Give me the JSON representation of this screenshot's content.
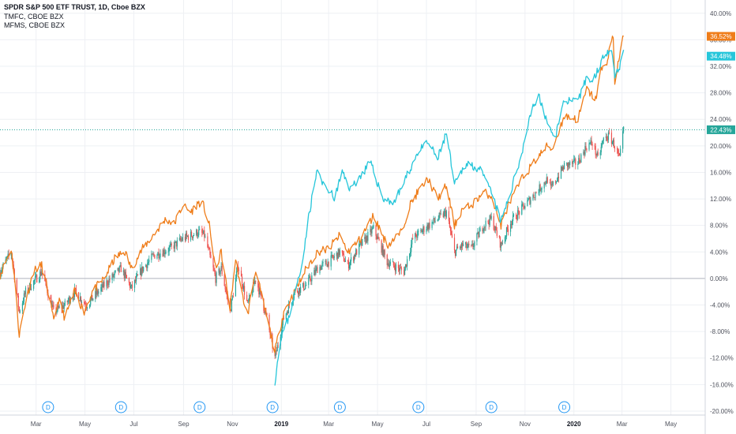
{
  "legend": {
    "main": "SPDR S&P 500 ETF TRUST, 1D, Cboe BZX",
    "compare1": "TMFC, CBOE BZX",
    "compare2": "MFMS, CBOE BZX"
  },
  "colors": {
    "tmfc": "#ef7d1a",
    "mfms": "#26c6da",
    "up": "#26a69a",
    "down": "#ef5350",
    "dividend": "#2196f3",
    "grid": "#eef0f4",
    "zero": "#b2b5be",
    "price_line": "#26a69a"
  },
  "chart_data": {
    "type": "line",
    "title": "SPDR S&P 500 ETF TRUST, 1D, Cboe BZX",
    "xlabel": "",
    "ylabel": "",
    "ylim": [
      -20.6,
      42
    ],
    "y_unit": "%",
    "grid": true,
    "x_axis_labels": [
      "Mar",
      "May",
      "Jul",
      "Sep",
      "Nov",
      "2019",
      "Mar",
      "May",
      "Jul",
      "Sep",
      "Nov",
      "2020",
      "Mar",
      "May"
    ],
    "y_axis_labels": [
      "40.00%",
      "36.00%",
      "32.00%",
      "28.00%",
      "24.00%",
      "20.00%",
      "16.00%",
      "12.00%",
      "8.00%",
      "4.00%",
      "0.00%",
      "-4.00%",
      "-8.00%",
      "-12.00%",
      "-16.00%",
      "-20.00%"
    ],
    "y_ticks": [
      40,
      36,
      32,
      28,
      24,
      20,
      16,
      12,
      8,
      4,
      0,
      -4,
      -8,
      -12,
      -16,
      -20
    ],
    "dividend_markers": {
      "label": "D",
      "dates": [
        "2018-03-16",
        "2018-06-15",
        "2018-09-21",
        "2018-12-21",
        "2019-03-15",
        "2019-06-21",
        "2019-09-20",
        "2019-12-20"
      ]
    },
    "last_values": [
      {
        "series": "TMFC",
        "label": "36.52%",
        "value": 36.52
      },
      {
        "series": "MFMS",
        "label": "34.48%",
        "value": 34.48
      },
      {
        "series": "SPY",
        "label": "22.43%",
        "value": 22.43
      }
    ],
    "series": [
      {
        "name": "TMFC",
        "type": "line",
        "points": [
          [
            "2018-01-15",
            0.5
          ],
          [
            "2018-01-29",
            4.5
          ],
          [
            "2018-02-02",
            0.2
          ],
          [
            "2018-02-08",
            -8.5
          ],
          [
            "2018-02-16",
            -3.5
          ],
          [
            "2018-02-26",
            1.2
          ],
          [
            "2018-03-08",
            2.0
          ],
          [
            "2018-03-16",
            -2.0
          ],
          [
            "2018-03-23",
            -6.5
          ],
          [
            "2018-03-29",
            -3.2
          ],
          [
            "2018-04-06",
            -6.0
          ],
          [
            "2018-04-18",
            -2.0
          ],
          [
            "2018-04-30",
            -5.0
          ],
          [
            "2018-05-10",
            -2.0
          ],
          [
            "2018-05-25",
            0.0
          ],
          [
            "2018-06-08",
            3.2
          ],
          [
            "2018-06-20",
            4.0
          ],
          [
            "2018-06-28",
            1.5
          ],
          [
            "2018-07-12",
            4.5
          ],
          [
            "2018-07-25",
            6.5
          ],
          [
            "2018-08-10",
            9.0
          ],
          [
            "2018-08-20",
            8.2
          ],
          [
            "2018-08-31",
            11.0
          ],
          [
            "2018-09-10",
            10.0
          ],
          [
            "2018-09-20",
            11.5
          ],
          [
            "2018-09-26",
            11.0
          ],
          [
            "2018-10-03",
            8.0
          ],
          [
            "2018-10-11",
            1.5
          ],
          [
            "2018-10-18",
            4.0
          ],
          [
            "2018-10-29",
            -4.5
          ],
          [
            "2018-11-05",
            3.0
          ],
          [
            "2018-11-12",
            -2.0
          ],
          [
            "2018-11-20",
            -5.5
          ],
          [
            "2018-11-30",
            1.5
          ],
          [
            "2018-12-06",
            -2.0
          ],
          [
            "2018-12-14",
            -6.0
          ],
          [
            "2018-12-24",
            -11.0
          ],
          [
            "2019-01-04",
            -5.0
          ],
          [
            "2019-01-18",
            -2.0
          ],
          [
            "2019-02-01",
            1.5
          ],
          [
            "2019-02-15",
            4.0
          ],
          [
            "2019-03-01",
            4.5
          ],
          [
            "2019-03-15",
            6.5
          ],
          [
            "2019-03-25",
            4.0
          ],
          [
            "2019-04-10",
            6.0
          ],
          [
            "2019-04-26",
            9.5
          ],
          [
            "2019-05-13",
            5.0
          ],
          [
            "2019-05-31",
            7.0
          ],
          [
            "2019-06-10",
            11.0
          ],
          [
            "2019-06-20",
            13.0
          ],
          [
            "2019-07-03",
            15.0
          ],
          [
            "2019-07-15",
            12.0
          ],
          [
            "2019-07-26",
            14.0
          ],
          [
            "2019-08-05",
            8.0
          ],
          [
            "2019-08-15",
            10.5
          ],
          [
            "2019-08-26",
            11.0
          ],
          [
            "2019-09-10",
            13.0
          ],
          [
            "2019-09-20",
            12.5
          ],
          [
            "2019-10-02",
            8.0
          ],
          [
            "2019-10-11",
            11.0
          ],
          [
            "2019-10-28",
            15.0
          ],
          [
            "2019-11-15",
            18.0
          ],
          [
            "2019-11-29",
            20.0
          ],
          [
            "2019-12-05",
            19.5
          ],
          [
            "2019-12-20",
            24.5
          ],
          [
            "2020-01-06",
            24.0
          ],
          [
            "2020-01-17",
            28.5
          ],
          [
            "2020-01-28",
            27.0
          ],
          [
            "2020-02-04",
            31.5
          ],
          [
            "2020-02-10",
            32.0
          ],
          [
            "2020-02-14",
            34.5
          ],
          [
            "2020-02-19",
            36.5
          ],
          [
            "2020-02-21",
            29.5
          ],
          [
            "2020-02-25",
            32.5
          ],
          [
            "2020-03-03",
            36.52
          ]
        ]
      },
      {
        "name": "MFMS",
        "type": "line",
        "points": [
          [
            "2018-12-24",
            -15.5
          ],
          [
            "2018-12-31",
            -9.0
          ],
          [
            "2019-01-10",
            -6.0
          ],
          [
            "2019-01-18",
            -2.0
          ],
          [
            "2019-01-25",
            1.0
          ],
          [
            "2019-02-05",
            10.0
          ],
          [
            "2019-02-15",
            16.5
          ],
          [
            "2019-02-22",
            14.0
          ],
          [
            "2019-03-01",
            13.5
          ],
          [
            "2019-03-08",
            12.0
          ],
          [
            "2019-03-18",
            16.0
          ],
          [
            "2019-03-28",
            13.5
          ],
          [
            "2019-04-10",
            15.5
          ],
          [
            "2019-04-22",
            17.5
          ],
          [
            "2019-05-08",
            12.0
          ],
          [
            "2019-05-22",
            11.5
          ],
          [
            "2019-06-05",
            15.0
          ],
          [
            "2019-06-20",
            19.0
          ],
          [
            "2019-07-03",
            20.5
          ],
          [
            "2019-07-15",
            18.0
          ],
          [
            "2019-07-26",
            22.0
          ],
          [
            "2019-08-05",
            14.0
          ],
          [
            "2019-08-20",
            17.5
          ],
          [
            "2019-09-05",
            16.5
          ],
          [
            "2019-09-20",
            13.0
          ],
          [
            "2019-10-02",
            8.5
          ],
          [
            "2019-10-14",
            13.0
          ],
          [
            "2019-10-28",
            19.0
          ],
          [
            "2019-11-08",
            25.0
          ],
          [
            "2019-11-18",
            27.5
          ],
          [
            "2019-12-03",
            22.0
          ],
          [
            "2019-12-10",
            22.0
          ],
          [
            "2019-12-20",
            27.0
          ],
          [
            "2020-01-06",
            26.5
          ],
          [
            "2020-01-17",
            30.5
          ],
          [
            "2020-01-24",
            29.5
          ],
          [
            "2020-02-03",
            32.5
          ],
          [
            "2020-02-10",
            34.0
          ],
          [
            "2020-02-17",
            35.0
          ],
          [
            "2020-02-21",
            30.5
          ],
          [
            "2020-02-27",
            32.0
          ],
          [
            "2020-03-03",
            34.48
          ]
        ]
      },
      {
        "name": "SPY",
        "type": "candlestick",
        "points": [
          [
            "2018-01-15",
            1.0
          ],
          [
            "2018-01-29",
            4.0
          ],
          [
            "2018-02-08",
            -5.0
          ],
          [
            "2018-02-16",
            -2.0
          ],
          [
            "2018-03-08",
            1.0
          ],
          [
            "2018-03-23",
            -5.0
          ],
          [
            "2018-04-06",
            -4.0
          ],
          [
            "2018-04-18",
            -2.0
          ],
          [
            "2018-05-03",
            -4.0
          ],
          [
            "2018-05-25",
            -1.0
          ],
          [
            "2018-06-15",
            1.5
          ],
          [
            "2018-06-28",
            -1.5
          ],
          [
            "2018-07-12",
            1.5
          ],
          [
            "2018-07-26",
            3.5
          ],
          [
            "2018-08-15",
            4.5
          ],
          [
            "2018-08-31",
            6.0
          ],
          [
            "2018-09-20",
            7.0
          ],
          [
            "2018-09-27",
            6.5
          ],
          [
            "2018-10-11",
            0.0
          ],
          [
            "2018-10-18",
            1.5
          ],
          [
            "2018-10-29",
            -5.0
          ],
          [
            "2018-11-08",
            2.0
          ],
          [
            "2018-11-20",
            -4.0
          ],
          [
            "2018-11-30",
            0.0
          ],
          [
            "2018-12-07",
            -3.0
          ],
          [
            "2018-12-14",
            -6.0
          ],
          [
            "2018-12-24",
            -12.0
          ],
          [
            "2019-01-04",
            -6.0
          ],
          [
            "2019-01-18",
            -2.0
          ],
          [
            "2019-02-01",
            -1.0
          ],
          [
            "2019-02-15",
            1.5
          ],
          [
            "2019-03-01",
            2.5
          ],
          [
            "2019-03-15",
            4.0
          ],
          [
            "2019-03-25",
            2.0
          ],
          [
            "2019-04-10",
            5.0
          ],
          [
            "2019-04-26",
            7.5
          ],
          [
            "2019-05-13",
            2.5
          ],
          [
            "2019-06-03",
            1.0
          ],
          [
            "2019-06-14",
            6.0
          ],
          [
            "2019-06-28",
            7.5
          ],
          [
            "2019-07-15",
            9.0
          ],
          [
            "2019-07-26",
            10.0
          ],
          [
            "2019-08-05",
            4.0
          ],
          [
            "2019-08-15",
            5.0
          ],
          [
            "2019-08-26",
            4.5
          ],
          [
            "2019-09-10",
            8.0
          ],
          [
            "2019-09-20",
            9.0
          ],
          [
            "2019-10-02",
            5.0
          ],
          [
            "2019-10-14",
            8.5
          ],
          [
            "2019-10-28",
            10.5
          ],
          [
            "2019-11-15",
            13.0
          ],
          [
            "2019-11-29",
            15.0
          ],
          [
            "2019-12-03",
            13.5
          ],
          [
            "2019-12-20",
            17.0
          ],
          [
            "2020-01-06",
            17.5
          ],
          [
            "2020-01-17",
            20.0
          ],
          [
            "2020-01-24",
            20.5
          ],
          [
            "2020-01-31",
            18.0
          ],
          [
            "2020-02-07",
            21.0
          ],
          [
            "2020-02-14",
            21.5
          ],
          [
            "2020-02-21",
            20.0
          ],
          [
            "2020-02-27",
            18.0
          ],
          [
            "2020-03-03",
            22.43
          ]
        ]
      }
    ]
  }
}
